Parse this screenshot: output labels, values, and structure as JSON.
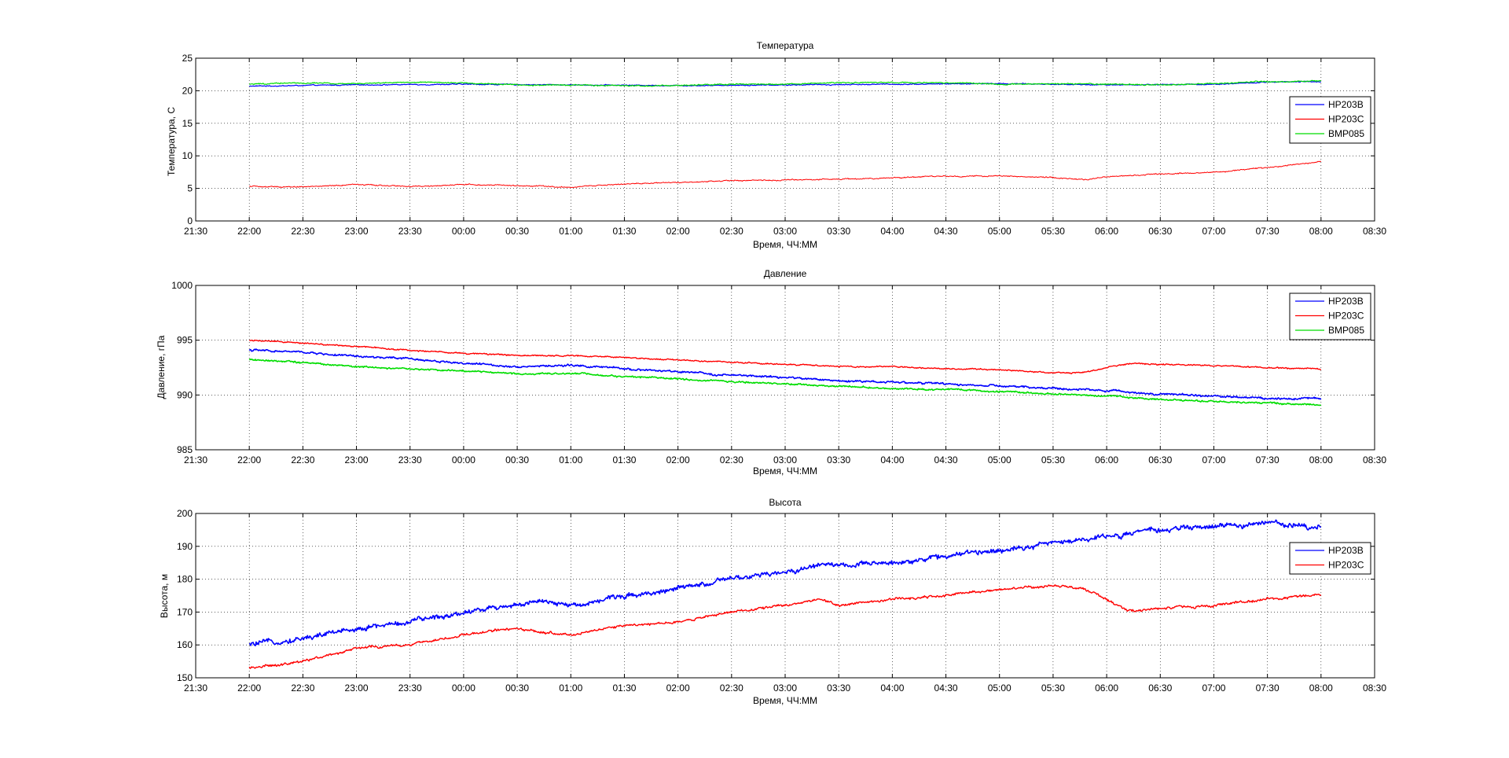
{
  "chart_data": [
    {
      "type": "line",
      "title": "Температура",
      "xlabel": "Время, ЧЧ:ММ",
      "ylabel": "Температура, С",
      "xlim_hours": [
        21.5,
        32.5
      ],
      "ylim": [
        0,
        25
      ],
      "yticks": [
        0,
        5,
        10,
        15,
        20,
        25
      ],
      "xtick_labels": [
        "21:30",
        "22:00",
        "22:30",
        "23:00",
        "23:30",
        "00:00",
        "00:30",
        "01:00",
        "01:30",
        "02:00",
        "02:30",
        "03:00",
        "03:30",
        "04:00",
        "04:30",
        "05:00",
        "05:30",
        "06:00",
        "06:30",
        "07:00",
        "07:30",
        "08:00",
        "08:30"
      ],
      "grid": true,
      "legend_position": "right",
      "series": [
        {
          "name": "HP203B",
          "color": "#0000ff",
          "noise": 0.1,
          "width": 1.2,
          "x": [
            22.0,
            23.0,
            24.0,
            25.0,
            26.0,
            27.0,
            28.0,
            29.0,
            30.0,
            31.0,
            31.5,
            32.0
          ],
          "values": [
            20.7,
            20.9,
            21.0,
            20.9,
            20.8,
            20.9,
            21.0,
            21.1,
            20.9,
            21.0,
            21.3,
            21.4
          ]
        },
        {
          "name": "HP203C",
          "color": "#ff0000",
          "noise": 0.12,
          "width": 1,
          "x": [
            22.0,
            22.5,
            23.0,
            23.5,
            24.0,
            24.5,
            25.0,
            25.5,
            26.0,
            26.5,
            27.0,
            27.5,
            28.0,
            28.5,
            29.0,
            29.5,
            29.8,
            30.0,
            30.5,
            31.0,
            31.5,
            32.0
          ],
          "values": [
            5.3,
            5.2,
            5.6,
            5.3,
            5.6,
            5.4,
            5.2,
            5.7,
            5.9,
            6.2,
            6.3,
            6.4,
            6.6,
            6.9,
            6.9,
            6.7,
            6.3,
            6.8,
            7.2,
            7.5,
            8.2,
            9.1
          ]
        },
        {
          "name": "BMP085",
          "color": "#00dd00",
          "noise": 0.12,
          "width": 1.2,
          "x": [
            22.0,
            22.5,
            23.0,
            23.5,
            24.0,
            24.5,
            25.0,
            25.5,
            26.0,
            26.5,
            27.0,
            27.5,
            28.0,
            28.5,
            29.0,
            29.5,
            30.0,
            30.5,
            31.0,
            31.5,
            32.0
          ],
          "values": [
            21.0,
            21.2,
            21.1,
            21.3,
            21.2,
            20.9,
            20.9,
            20.8,
            20.8,
            21.0,
            21.0,
            21.2,
            21.3,
            21.2,
            21.0,
            21.1,
            21.0,
            20.9,
            21.1,
            21.4,
            21.5
          ]
        }
      ]
    },
    {
      "type": "line",
      "title": "Давление",
      "xlabel": "Время, ЧЧ:ММ",
      "ylabel": "Давление, гПа",
      "xlim_hours": [
        21.5,
        32.5
      ],
      "ylim": [
        985,
        1000
      ],
      "yticks": [
        985,
        990,
        995,
        1000
      ],
      "xtick_labels": [
        "21:30",
        "22:00",
        "22:30",
        "23:00",
        "23:30",
        "00:00",
        "00:30",
        "01:00",
        "01:30",
        "02:00",
        "02:30",
        "03:00",
        "03:30",
        "04:00",
        "04:30",
        "05:00",
        "05:30",
        "06:00",
        "06:30",
        "07:00",
        "07:30",
        "08:00",
        "08:30"
      ],
      "grid": true,
      "legend_position": "top-right",
      "series": [
        {
          "name": "HP203B",
          "color": "#0000ff",
          "noise": 0.12,
          "width": 1.6,
          "x": [
            22.0,
            22.5,
            23.0,
            23.5,
            24.0,
            24.5,
            25.0,
            25.5,
            26.0,
            26.5,
            27.0,
            27.5,
            28.0,
            28.5,
            29.0,
            29.5,
            30.0,
            30.5,
            31.0,
            31.5,
            32.0
          ],
          "values": [
            994.1,
            993.9,
            993.5,
            993.3,
            992.9,
            992.6,
            992.7,
            992.4,
            992.1,
            991.8,
            991.6,
            991.3,
            991.2,
            991.0,
            990.8,
            990.6,
            990.4,
            990.1,
            989.9,
            989.7,
            989.7
          ]
        },
        {
          "name": "HP203C",
          "color": "#ff0000",
          "noise": 0.08,
          "width": 1.4,
          "x": [
            22.0,
            22.5,
            23.0,
            23.5,
            24.0,
            24.5,
            25.0,
            25.5,
            26.0,
            26.5,
            27.0,
            27.5,
            28.0,
            28.5,
            29.0,
            29.5,
            29.8,
            30.2,
            30.5,
            31.0,
            31.5,
            32.0
          ],
          "values": [
            995.0,
            994.7,
            994.4,
            994.1,
            993.8,
            993.6,
            993.6,
            993.4,
            993.2,
            993.0,
            992.8,
            992.6,
            992.6,
            992.4,
            992.3,
            992.0,
            992.1,
            992.9,
            992.8,
            992.7,
            992.5,
            992.4
          ]
        },
        {
          "name": "BMP085",
          "color": "#00dd00",
          "noise": 0.1,
          "width": 1.6,
          "x": [
            22.0,
            22.5,
            23.0,
            23.5,
            24.0,
            24.5,
            25.0,
            25.5,
            26.0,
            26.5,
            27.0,
            27.5,
            28.0,
            28.5,
            29.0,
            29.5,
            30.0,
            30.5,
            31.0,
            31.5,
            32.0
          ],
          "values": [
            993.2,
            993.0,
            992.6,
            992.4,
            992.2,
            991.9,
            992.0,
            991.7,
            991.5,
            991.2,
            991.0,
            990.8,
            990.6,
            990.5,
            990.3,
            990.1,
            989.9,
            989.6,
            989.4,
            989.3,
            989.1
          ]
        }
      ]
    },
    {
      "type": "line",
      "title": "Высота",
      "xlabel": "Время, ЧЧ:ММ",
      "ylabel": "Высота, м",
      "xlim_hours": [
        21.5,
        32.5
      ],
      "ylim": [
        150,
        200
      ],
      "yticks": [
        150,
        160,
        170,
        180,
        190,
        200
      ],
      "xtick_labels": [
        "21:30",
        "22:00",
        "22:30",
        "23:00",
        "23:30",
        "00:00",
        "00:30",
        "01:00",
        "01:30",
        "02:00",
        "02:30",
        "03:00",
        "03:30",
        "04:00",
        "04:30",
        "05:00",
        "05:30",
        "06:00",
        "06:30",
        "07:00",
        "07:30",
        "08:00",
        "08:30"
      ],
      "grid": true,
      "legend_position": "right",
      "series": [
        {
          "name": "HP203B",
          "color": "#0000ff",
          "noise": 1.0,
          "width": 1.6,
          "x": [
            22.0,
            22.5,
            23.0,
            23.5,
            24.0,
            24.4,
            24.7,
            25.0,
            25.5,
            26.0,
            26.5,
            27.0,
            27.4,
            27.6,
            28.0,
            28.5,
            29.0,
            29.5,
            30.0,
            30.5,
            31.0,
            31.5,
            32.0
          ],
          "values": [
            160,
            162,
            165,
            167,
            170,
            172,
            173,
            172,
            175,
            177,
            180,
            182,
            185,
            184,
            185,
            187,
            189,
            191,
            193,
            195,
            196,
            197,
            196
          ]
        },
        {
          "name": "HP203C",
          "color": "#ff0000",
          "noise": 0.5,
          "width": 1.4,
          "x": [
            22.0,
            22.5,
            23.0,
            23.5,
            24.0,
            24.4,
            24.7,
            25.0,
            25.5,
            26.0,
            26.5,
            27.0,
            27.35,
            27.5,
            28.0,
            28.5,
            29.0,
            29.5,
            29.8,
            30.2,
            30.5,
            31.0,
            31.5,
            32.0
          ],
          "values": [
            153,
            155,
            159,
            160,
            163,
            165,
            164,
            163,
            166,
            167,
            170,
            172,
            174,
            172,
            174,
            175,
            177,
            178,
            177,
            170.5,
            171,
            172,
            174,
            175
          ]
        }
      ]
    }
  ]
}
